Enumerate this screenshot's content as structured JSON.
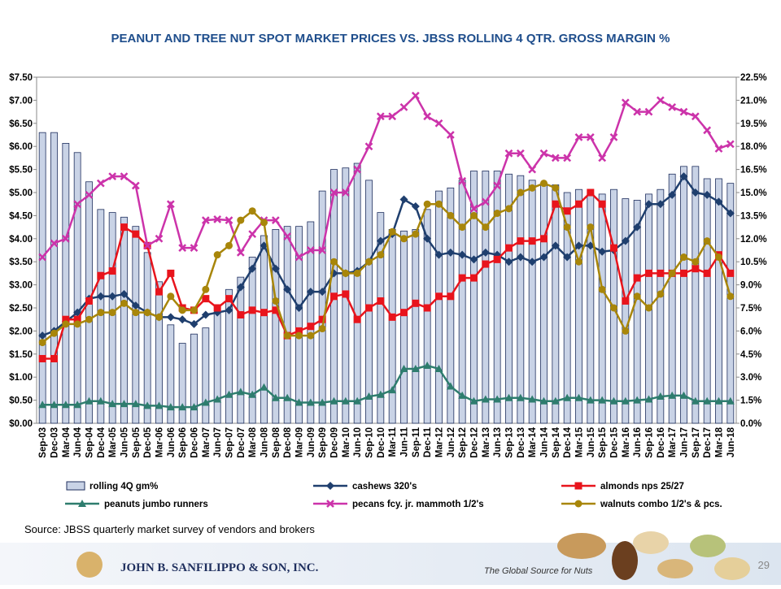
{
  "chart_data": {
    "type": "bar",
    "title": "PEANUT AND TREE NUT SPOT MARKET PRICES VS. JBSS ROLLING 4 QTR. GROSS MARGIN %",
    "source": "Source:  JBSS quarterly market survey of vendors and brokers",
    "categories": [
      "Sep-03",
      "Dec-03",
      "Mar-04",
      "Jun-04",
      "Sep-04",
      "Dec-04",
      "Mar-05",
      "Jun-05",
      "Sep-05",
      "Dec-05",
      "Mar-06",
      "Jun-06",
      "Sep-06",
      "Dec-06",
      "Mar-07",
      "Jun-07",
      "Sep-07",
      "Dec-07",
      "Mar-08",
      "Jun-08",
      "Sep-08",
      "Dec-08",
      "Mar-09",
      "Jun-09",
      "Sep-09",
      "Dec-09",
      "Mar-10",
      "Jun-10",
      "Sep-10",
      "Dec-10",
      "Mar-11",
      "Jun-11",
      "Sep-11",
      "Dec-11",
      "Mar-12",
      "Jun-12",
      "Sep-12",
      "Dec-12",
      "Mar-13",
      "Jun-13",
      "Sep-13",
      "Dec-13",
      "Mar-14",
      "Jun-14",
      "Sep-14",
      "Dec-14",
      "Mar-15",
      "Jun-15",
      "Sep-15",
      "Dec-15",
      "Mar-16",
      "Jun-16",
      "Sep-16",
      "Dec-16",
      "Mar-17",
      "Jun-17",
      "Sep-17",
      "Dec-17",
      "Mar-18",
      "Jun-18"
    ],
    "series": [
      {
        "name": "rolling 4Q gm%",
        "type": "bar",
        "axis": "y2",
        "color": "#c9d3e6",
        "values": [
          18.9,
          18.9,
          18.2,
          17.6,
          15.7,
          13.9,
          13.7,
          13.4,
          12.8,
          11.1,
          9.2,
          6.4,
          5.2,
          5.8,
          6.2,
          7.2,
          8.7,
          9.5,
          10.8,
          12.2,
          12.6,
          12.8,
          12.8,
          13.1,
          15.1,
          16.5,
          16.6,
          16.9,
          15.8,
          13.7,
          12.6,
          12.5,
          12.6,
          13.9,
          15.1,
          15.3,
          15.8,
          16.4,
          16.4,
          16.4,
          16.2,
          16.1,
          15.8,
          15.6,
          15.5,
          15.0,
          15.2,
          14.9,
          14.9,
          15.2,
          14.6,
          14.5,
          14.9,
          15.2,
          16.2,
          16.7,
          16.7,
          15.9,
          15.9,
          15.6
        ]
      },
      {
        "name": "cashews 320's",
        "type": "line",
        "marker": "diamond",
        "color": "#1f3f6e",
        "values": [
          1.9,
          2.0,
          2.2,
          2.4,
          2.7,
          2.75,
          2.75,
          2.8,
          2.55,
          2.4,
          2.3,
          2.3,
          2.25,
          2.15,
          2.35,
          2.4,
          2.45,
          2.95,
          3.35,
          3.85,
          3.35,
          2.9,
          2.5,
          2.85,
          2.85,
          3.25,
          3.25,
          3.3,
          3.5,
          3.95,
          4.1,
          4.85,
          4.7,
          4.0,
          3.65,
          3.7,
          3.65,
          3.55,
          3.7,
          3.65,
          3.5,
          3.6,
          3.5,
          3.6,
          3.85,
          3.6,
          3.85,
          3.85,
          3.72,
          3.75,
          3.95,
          4.25,
          4.75,
          4.75,
          4.95,
          5.35,
          5.0,
          4.95,
          4.8,
          4.55
        ]
      },
      {
        "name": "almonds nps 25/27",
        "type": "line",
        "marker": "square",
        "color": "#e8141c",
        "values": [
          1.4,
          1.4,
          2.25,
          2.25,
          2.65,
          3.2,
          3.3,
          4.25,
          4.1,
          3.85,
          2.85,
          3.25,
          2.5,
          2.45,
          2.7,
          2.5,
          2.7,
          2.35,
          2.45,
          2.4,
          2.45,
          1.9,
          2.0,
          2.1,
          2.25,
          2.75,
          2.8,
          2.25,
          2.5,
          2.65,
          2.3,
          2.4,
          2.6,
          2.5,
          2.75,
          2.75,
          3.15,
          3.15,
          3.45,
          3.55,
          3.8,
          3.95,
          3.95,
          4.0,
          4.75,
          4.6,
          4.75,
          5.0,
          4.75,
          3.8,
          2.65,
          3.15,
          3.25,
          3.25,
          3.25,
          3.25,
          3.35,
          3.25,
          3.65,
          3.25
        ]
      },
      {
        "name": "peanuts jumbo runners",
        "type": "line",
        "marker": "triangle",
        "color": "#2e7d6e",
        "values": [
          0.4,
          0.4,
          0.4,
          0.4,
          0.48,
          0.48,
          0.42,
          0.42,
          0.42,
          0.38,
          0.38,
          0.35,
          0.35,
          0.35,
          0.45,
          0.52,
          0.62,
          0.68,
          0.62,
          0.78,
          0.55,
          0.55,
          0.45,
          0.45,
          0.45,
          0.48,
          0.48,
          0.48,
          0.58,
          0.62,
          0.72,
          1.18,
          1.18,
          1.25,
          1.18,
          0.8,
          0.6,
          0.48,
          0.52,
          0.52,
          0.55,
          0.55,
          0.52,
          0.48,
          0.48,
          0.55,
          0.55,
          0.5,
          0.5,
          0.48,
          0.48,
          0.5,
          0.52,
          0.58,
          0.6,
          0.6,
          0.48,
          0.48,
          0.48,
          0.48
        ]
      },
      {
        "name": "pecans fcy. jr. mammoth 1/2's",
        "type": "line",
        "marker": "cross",
        "color": "#cc33aa",
        "values": [
          3.6,
          3.9,
          4.0,
          4.75,
          4.95,
          5.2,
          5.35,
          5.35,
          5.15,
          3.85,
          4.0,
          4.75,
          3.8,
          3.8,
          4.4,
          4.42,
          4.4,
          3.7,
          4.1,
          4.4,
          4.4,
          4.05,
          3.6,
          3.75,
          3.75,
          5.0,
          5.0,
          5.5,
          6.0,
          6.65,
          6.65,
          6.85,
          7.1,
          6.65,
          6.5,
          6.25,
          5.25,
          4.65,
          4.8,
          5.15,
          5.85,
          5.85,
          5.5,
          5.85,
          5.75,
          5.75,
          6.2,
          6.2,
          5.75,
          6.2,
          6.95,
          6.75,
          6.75,
          7.0,
          6.85,
          6.75,
          6.65,
          6.35,
          5.95,
          6.05
        ]
      },
      {
        "name": "walnuts combo 1/2's & pcs.",
        "type": "line",
        "marker": "circle",
        "color": "#a8860a",
        "values": [
          1.75,
          1.95,
          2.15,
          2.15,
          2.25,
          2.4,
          2.4,
          2.6,
          2.4,
          2.4,
          2.3,
          2.75,
          2.45,
          2.45,
          2.9,
          3.65,
          3.85,
          4.4,
          4.6,
          4.35,
          2.65,
          1.9,
          1.9,
          1.9,
          2.05,
          3.5,
          3.25,
          3.25,
          3.5,
          3.65,
          4.15,
          4.0,
          4.1,
          4.75,
          4.75,
          4.5,
          4.25,
          4.5,
          4.25,
          4.55,
          4.65,
          5.0,
          5.1,
          5.2,
          5.1,
          4.25,
          3.5,
          4.25,
          2.9,
          2.5,
          2.0,
          2.75,
          2.5,
          2.8,
          3.25,
          3.6,
          3.5,
          3.95,
          3.6,
          2.75
        ]
      }
    ],
    "ylim": [
      0,
      7.5
    ],
    "yticks": [
      {
        "value": 0,
        "label": "$0.00"
      },
      {
        "value": 0.5,
        "label": "$0.50"
      },
      {
        "value": 1,
        "label": "$1.00"
      },
      {
        "value": 1.5,
        "label": "$1.50"
      },
      {
        "value": 2,
        "label": "$2.00"
      },
      {
        "value": 2.5,
        "label": "$2.50"
      },
      {
        "value": 3,
        "label": "$3.00"
      },
      {
        "value": 3.5,
        "label": "$3.50"
      },
      {
        "value": 4,
        "label": "$4.00"
      },
      {
        "value": 4.5,
        "label": "$4.50"
      },
      {
        "value": 5,
        "label": "$5.00"
      },
      {
        "value": 5.5,
        "label": "$5.50"
      },
      {
        "value": 6,
        "label": "$6.00"
      },
      {
        "value": 6.5,
        "label": "$6.50"
      },
      {
        "value": 7,
        "label": "$7.00"
      },
      {
        "value": 7.5,
        "label": "$7.50"
      }
    ],
    "y2lim": [
      0,
      22.5
    ],
    "y2ticks": [
      {
        "value": 0,
        "label": "0.0%"
      },
      {
        "value": 1.5,
        "label": "1.5%"
      },
      {
        "value": 3,
        "label": "3.0%"
      },
      {
        "value": 4.5,
        "label": "4.5%"
      },
      {
        "value": 6,
        "label": "6.0%"
      },
      {
        "value": 7.5,
        "label": "7.5%"
      },
      {
        "value": 9,
        "label": "9.0%"
      },
      {
        "value": 10.5,
        "label": "10.5%"
      },
      {
        "value": 12,
        "label": "12.0%"
      },
      {
        "value": 13.5,
        "label": "13.5%"
      },
      {
        "value": 15,
        "label": "15.0%"
      },
      {
        "value": 16.5,
        "label": "16.5%"
      },
      {
        "value": 18,
        "label": "18.0%"
      },
      {
        "value": 19.5,
        "label": "19.5%"
      },
      {
        "value": 21,
        "label": "21.0%"
      },
      {
        "value": 22.5,
        "label": "22.5%"
      }
    ],
    "grid": false
  },
  "footer": {
    "company": "JOHN B. SANFILIPPO & SON, INC.",
    "tagline": "The Global Source for Nuts",
    "page": "29"
  }
}
